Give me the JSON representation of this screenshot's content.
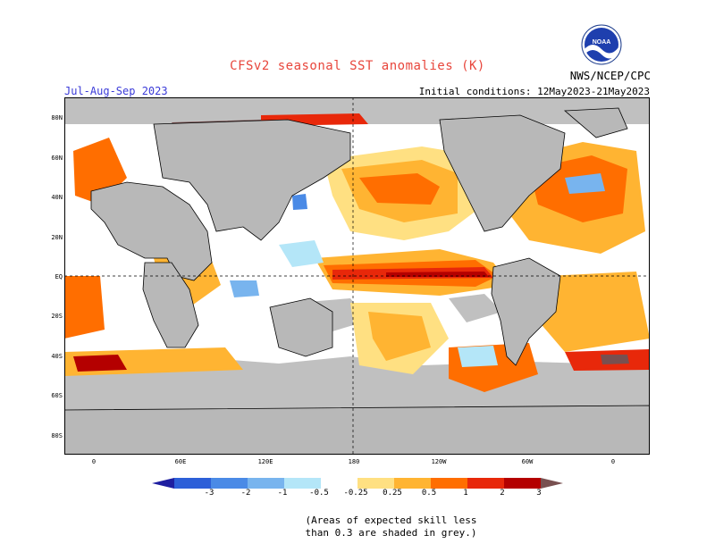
{
  "header": {
    "title": "CFSv2 seasonal SST anomalies (K)",
    "season": "Jul-Aug-Sep 2023",
    "initial_conditions": "Initial conditions: 12May2023-21May2023",
    "agency": "NWS/NCEP/CPC",
    "logo_text": "NOAA"
  },
  "map": {
    "lat_labels": [
      "80N",
      "60N",
      "40N",
      "20N",
      "EQ",
      "20S",
      "40S",
      "60S",
      "80S"
    ],
    "lon_labels": [
      "0",
      "60E",
      "120E",
      "180",
      "120W",
      "60W",
      "0"
    ]
  },
  "colorbar": {
    "tick_labels": [
      "-3",
      "-2",
      "-1",
      "-0.5",
      "-0.25",
      "0.25",
      "0.5",
      "1",
      "2",
      "3"
    ],
    "colors": [
      "#1e1ea0",
      "#2d5fd8",
      "#4a8ae6",
      "#78b4ee",
      "#b4e6f8",
      "#ffffff",
      "#ffe082",
      "#ffb432",
      "#ff6e00",
      "#e8280a",
      "#b40000",
      "#785050"
    ]
  },
  "note": {
    "line1": "(Areas of expected skill less",
    "line2": "than 0.3 are shaded in grey.)"
  }
}
